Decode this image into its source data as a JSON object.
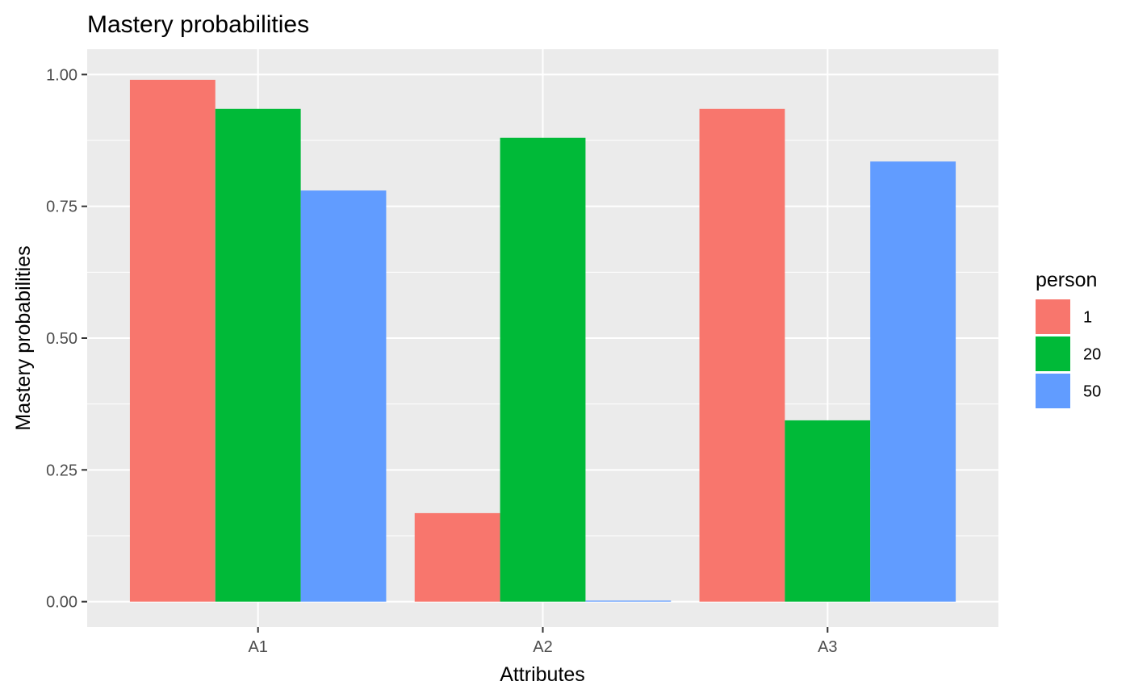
{
  "chart_data": {
    "type": "bar",
    "title": "Mastery probabilities",
    "xlabel": "Attributes",
    "ylabel": "Mastery probabilities",
    "categories": [
      "A1",
      "A2",
      "A3"
    ],
    "series": [
      {
        "name": "1",
        "values": [
          0.99,
          0.168,
          0.935
        ],
        "color": "#F8766D"
      },
      {
        "name": "20",
        "values": [
          0.935,
          0.88,
          0.344
        ],
        "color": "#00BA38"
      },
      {
        "name": "50",
        "values": [
          0.78,
          0.002,
          0.835
        ],
        "color": "#619CFF"
      }
    ],
    "ylim": [
      -0.048,
      1.048
    ],
    "yticks": [
      0.0,
      0.25,
      0.5,
      0.75,
      1.0
    ],
    "ytick_labels": [
      "0.00",
      "0.25",
      "0.50",
      "0.75",
      "1.00"
    ],
    "grid": true,
    "legend": {
      "title": "person",
      "position": "right"
    }
  },
  "colors": {
    "panel_background": "#EBEBEB",
    "grid": "#FFFFFF"
  }
}
